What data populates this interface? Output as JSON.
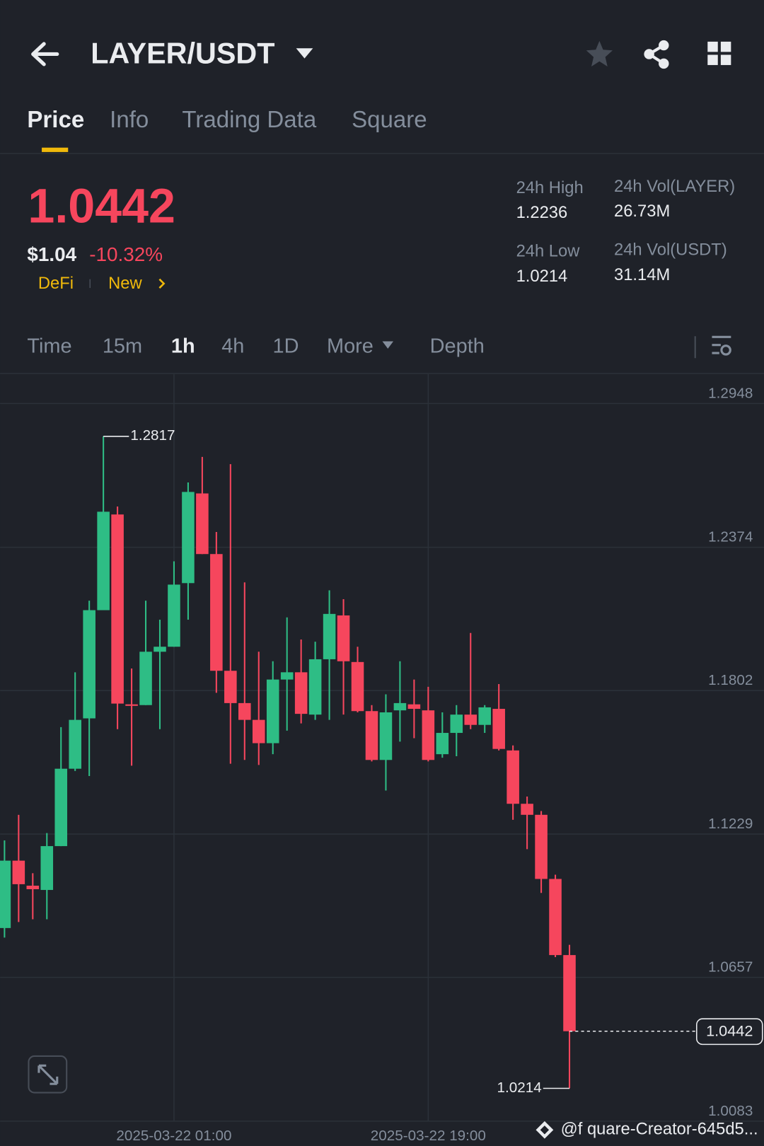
{
  "header": {
    "title": "LAYER/USDT"
  },
  "tabs": [
    "Price",
    "Info",
    "Trading Data",
    "Square"
  ],
  "ticker": {
    "price": "1.0442",
    "usd": "$1.04",
    "change": "-10.32%",
    "tags": [
      "DeFi",
      "New"
    ]
  },
  "stats": [
    {
      "label": "24h High",
      "value": "1.2236"
    },
    {
      "label": "24h Vol(LAYER)",
      "value": "26.73M"
    },
    {
      "label": "24h Low",
      "value": "1.0214"
    },
    {
      "label": "24h Vol(USDT)",
      "value": "31.14M"
    }
  ],
  "intervals": [
    "Time",
    "15m",
    "1h",
    "4h",
    "1D",
    "More",
    "Depth"
  ],
  "watermark": "@f quare-Creator-645d5...",
  "chart_data": {
    "type": "candlestick",
    "categories": [
      null,
      null,
      null,
      null,
      null,
      null,
      null,
      null,
      null,
      null,
      null,
      null,
      "2025-03-22 01:00",
      null,
      null,
      null,
      null,
      null,
      null,
      null,
      null,
      null,
      null,
      null,
      null,
      null,
      null,
      null,
      null,
      null,
      "2025-03-22 19:00",
      null,
      null,
      null,
      null,
      null,
      null,
      null,
      null,
      null,
      null
    ],
    "open": [
      1.0854,
      1.1123,
      1.1023,
      1.1006,
      1.1181,
      1.149,
      1.1691,
      1.2123,
      1.2505,
      1.1747,
      1.1744,
      1.1957,
      1.1977,
      1.2231,
      1.2589,
      1.2347,
      1.1881,
      1.1752,
      1.1685,
      1.1592,
      1.1846,
      1.1875,
      1.1706,
      1.1927,
      1.2102,
      1.1916,
      1.172,
      1.1525,
      1.1723,
      1.1747,
      1.1723,
      1.1548,
      1.1633,
      1.1706,
      1.1665,
      1.1729,
      1.1563,
      1.135,
      1.1306,
      1.105,
      1.0746
    ],
    "high": [
      1.1204,
      1.1306,
      1.1073,
      1.1233,
      1.1656,
      1.1875,
      1.2161,
      1.2817,
      1.2537,
      1.189,
      1.2161,
      1.2085,
      1.2318,
      1.2633,
      1.2735,
      1.2435,
      1.2706,
      1.2234,
      1.1957,
      1.1919,
      1.2094,
      1.2006,
      1.1997,
      1.2202,
      1.2167,
      1.1977,
      1.1744,
      1.1787,
      1.1919,
      1.1846,
      1.1817,
      1.1715,
      1.1744,
      1.2032,
      1.1744,
      1.1828,
      1.1583,
      1.1379,
      1.1321,
      1.1067,
      1.0787
    ],
    "low": [
      1.0816,
      1.0878,
      1.0889,
      1.0889,
      1.1181,
      1.1481,
      1.1461,
      1.2123,
      1.1648,
      1.1502,
      1.1744,
      1.1648,
      1.1977,
      1.2085,
      1.2347,
      1.1793,
      1.151,
      1.1525,
      1.1505,
      1.1548,
      1.1642,
      1.1671,
      1.1685,
      1.1685,
      1.1706,
      1.1715,
      1.1519,
      1.1403,
      1.1598,
      1.1612,
      1.1519,
      1.1534,
      1.154,
      1.1648,
      1.1633,
      1.1563,
      1.1286,
      1.1169,
      1.0994,
      1.0738,
      1.0214
    ],
    "close": [
      1.1123,
      1.1029,
      1.1009,
      1.1181,
      1.149,
      1.1685,
      1.2123,
      1.2516,
      1.175,
      1.1741,
      1.1957,
      1.1977,
      1.2225,
      1.2595,
      1.2347,
      1.1881,
      1.1752,
      1.1685,
      1.1592,
      1.1846,
      1.1875,
      1.1709,
      1.1927,
      1.2108,
      1.1919,
      1.172,
      1.1525,
      1.1715,
      1.1752,
      1.1729,
      1.1525,
      1.1633,
      1.1706,
      1.1665,
      1.1735,
      1.1569,
      1.135,
      1.1306,
      1.105,
      1.0746,
      1.0442
    ],
    "up_color": "#2ebd85",
    "down_color": "#f6465d",
    "ylim": [
      1.0083,
      1.3065
    ],
    "yticks": [
      1.2948,
      1.2374,
      1.1802,
      1.1229,
      1.0657,
      1.0083
    ],
    "grid": true
  }
}
